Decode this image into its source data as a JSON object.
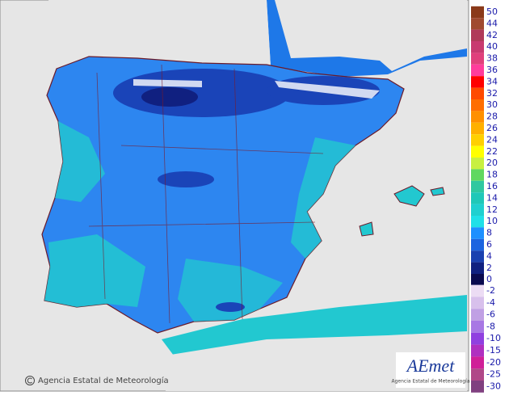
{
  "copyright": "Agencia Estatal de Meteorología",
  "logo": {
    "name": "AEmet",
    "subtitle": "Agencia Estatal de Meteorología"
  },
  "legend": {
    "warm": [
      {
        "value": 50,
        "color": "#8b3a1a"
      },
      {
        "value": 44,
        "color": "#a04a30"
      },
      {
        "value": 42,
        "color": "#b03a5a"
      },
      {
        "value": 40,
        "color": "#c83a70"
      },
      {
        "value": 38,
        "color": "#e0407c"
      },
      {
        "value": 36,
        "color": "#ff3c9c"
      },
      {
        "value": 34,
        "color": "#ff0000"
      },
      {
        "value": 32,
        "color": "#ff4a00"
      },
      {
        "value": 30,
        "color": "#ff6e00"
      },
      {
        "value": 28,
        "color": "#ff9000"
      },
      {
        "value": 26,
        "color": "#ffb000"
      },
      {
        "value": 24,
        "color": "#ffd000"
      },
      {
        "value": 22,
        "color": "#ffff00"
      },
      {
        "value": 20,
        "color": "#c8f040"
      },
      {
        "value": 18,
        "color": "#60d860"
      },
      {
        "value": 16,
        "color": "#30c8a0"
      },
      {
        "value": 14,
        "color": "#20c8b8"
      },
      {
        "value": 12,
        "color": "#20d0d0"
      },
      {
        "value": 10,
        "color": "#20e0e8"
      },
      {
        "value": 8,
        "color": "#1e90ff"
      },
      {
        "value": 6,
        "color": "#1c64e0"
      },
      {
        "value": 4,
        "color": "#1a40b0"
      },
      {
        "value": 2,
        "color": "#102080"
      },
      {
        "value": 0,
        "color": "#0a0a50"
      }
    ],
    "cold": [
      {
        "value": -2,
        "color": "#ecdcf4"
      },
      {
        "value": -4,
        "color": "#d8c0ec"
      },
      {
        "value": -6,
        "color": "#c0a0e4"
      },
      {
        "value": -8,
        "color": "#a878e4"
      },
      {
        "value": -10,
        "color": "#9040e0"
      },
      {
        "value": -15,
        "color": "#b030c0"
      },
      {
        "value": -20,
        "color": "#d02098"
      },
      {
        "value": -25,
        "color": "#b04888"
      },
      {
        "value": -30,
        "color": "#804080"
      }
    ]
  }
}
